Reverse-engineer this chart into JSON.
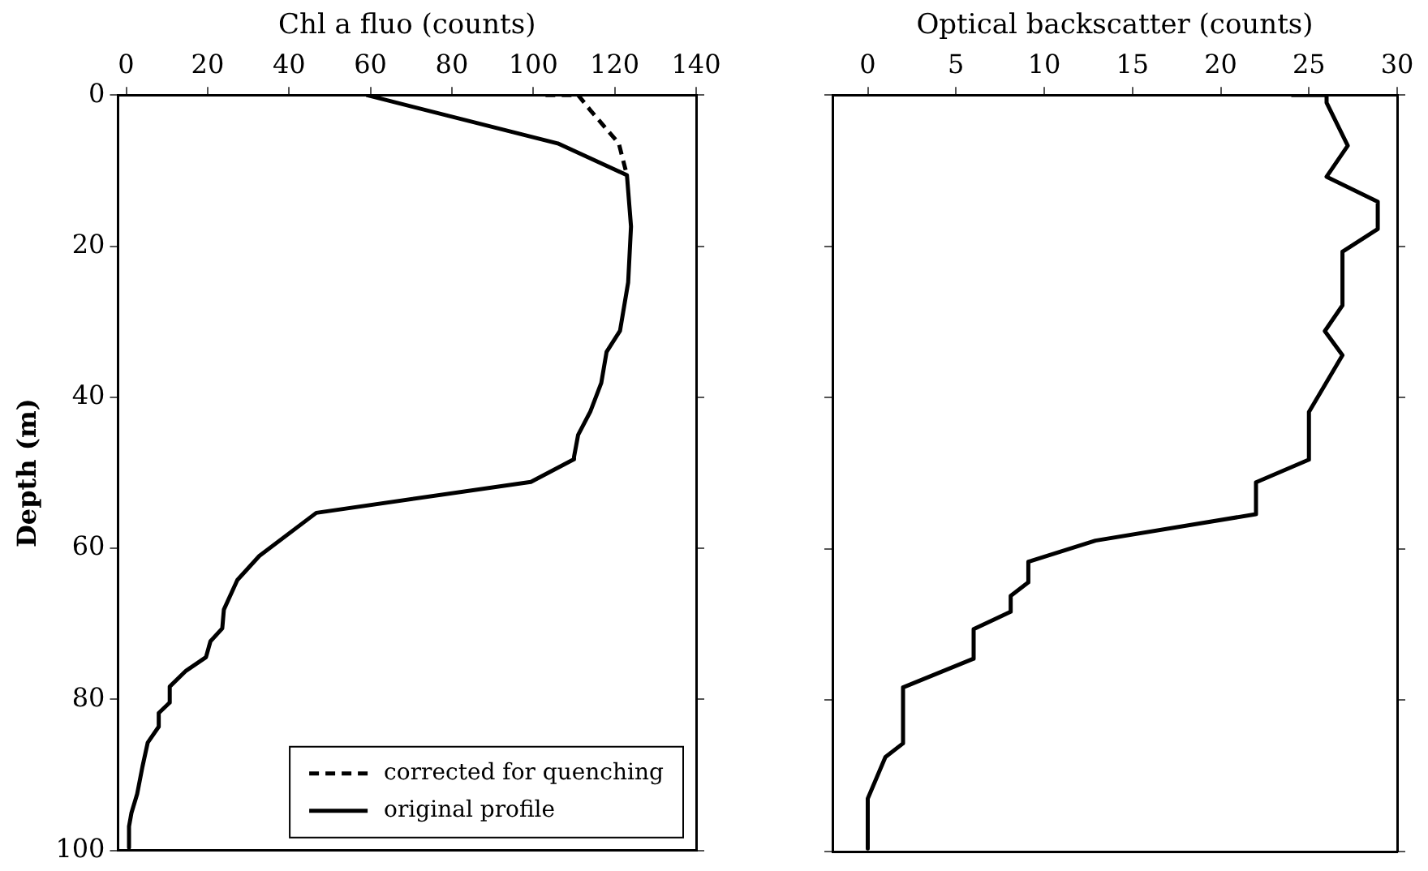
{
  "chart_data": [
    {
      "type": "line",
      "xlabel": "Chl a fluo (counts)",
      "ylabel": "Depth (m)",
      "xlim": [
        -2,
        140
      ],
      "xticks": [
        0,
        20,
        40,
        60,
        80,
        100,
        120,
        140
      ],
      "ylim": [
        100,
        0
      ],
      "yticks": [
        0,
        20,
        40,
        60,
        80,
        100
      ],
      "legend": "bottom right",
      "grid": false,
      "series": [
        {
          "name": "corrected for quenching",
          "color": "#000000",
          "line_style": "dashed",
          "x": [
            103,
            111,
            114,
            121,
            123
          ],
          "values": [
            0,
            0,
            2,
            6.4,
            10.6
          ]
        },
        {
          "name": "original profile",
          "color": "#000000",
          "line_style": "solid",
          "x": [
            59,
            106,
            123,
            124,
            123.3,
            121.3,
            118,
            116.7,
            114,
            111,
            110,
            110,
            99.4,
            46.7,
            32.7,
            27.3,
            24,
            23.6,
            20.7,
            19.6,
            14.7,
            10.7,
            10.7,
            8,
            8,
            5.3,
            4,
            2.7,
            1.3,
            0.7,
            0.7
          ],
          "values": [
            0,
            6.4,
            10.6,
            17.4,
            24.8,
            31.2,
            34,
            38.1,
            41.9,
            45,
            47.9,
            48.2,
            51.2,
            55.3,
            61,
            64.2,
            68.1,
            70.6,
            72.3,
            74.4,
            76.2,
            78.3,
            80.4,
            81.8,
            83.6,
            85.7,
            88.9,
            92.5,
            95,
            96.8,
            99.6
          ]
        }
      ]
    },
    {
      "type": "line",
      "xlabel": "Optical backscatter (counts)",
      "xlim": [
        -2,
        30
      ],
      "xticks": [
        0,
        5,
        10,
        15,
        20,
        25,
        30
      ],
      "ylim": [
        100,
        0
      ],
      "yticks": [
        0,
        20,
        40,
        60,
        80,
        100
      ],
      "tick_labels": "x",
      "grid": false,
      "series": [
        {
          "color": "#000000",
          "line_style": "solid",
          "x": [
            24,
            26,
            26,
            27.2,
            26,
            28.9,
            28.9,
            26.9,
            26.9,
            25.9,
            26.9,
            25,
            25,
            22,
            22,
            12.9,
            9.1,
            9.1,
            8.1,
            8.1,
            6,
            6,
            2,
            2,
            1,
            0,
            0
          ],
          "values": [
            0,
            0,
            1,
            6.7,
            10.8,
            14.1,
            17.7,
            20.7,
            27.8,
            31.2,
            34.4,
            41.9,
            48.2,
            51.2,
            55.4,
            58.9,
            61.7,
            64.4,
            66.2,
            68.3,
            70.6,
            74.5,
            78.3,
            85.7,
            87.5,
            93,
            99.6
          ]
        }
      ]
    }
  ]
}
